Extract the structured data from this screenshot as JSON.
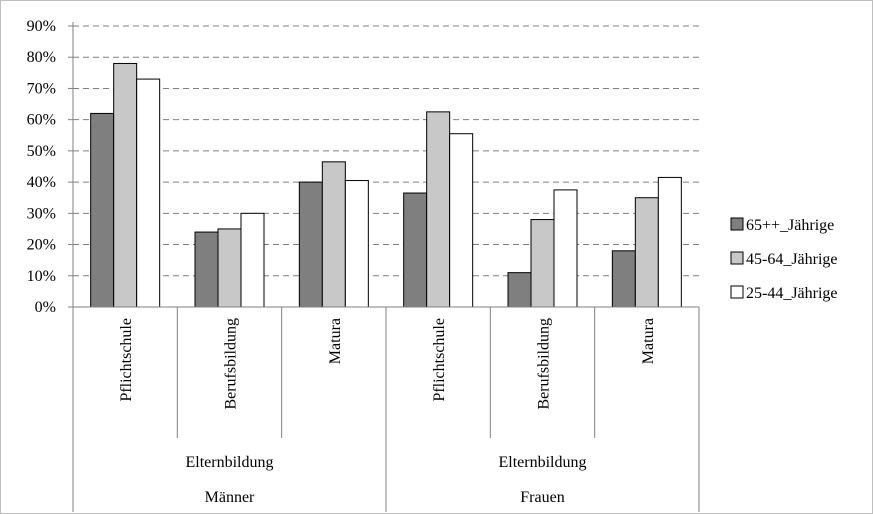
{
  "chart_data": {
    "type": "bar",
    "title": "",
    "xlabel": "",
    "ylabel": "",
    "ylim": [
      0,
      90
    ],
    "y_ticks": [
      "0%",
      "10%",
      "20%",
      "30%",
      "40%",
      "50%",
      "60%",
      "70%",
      "80%",
      "90%"
    ],
    "grid": "horizontal-dashed",
    "legend_position": "right",
    "categories": [
      "Pflichtschule",
      "Berufsbildung",
      "Matura",
      "Pflichtschule",
      "Berufsbildung",
      "Matura"
    ],
    "groups_level1": [
      {
        "label": "Elternbildung",
        "span": 3
      },
      {
        "label": "Elternbildung",
        "span": 3
      }
    ],
    "groups_level2": [
      {
        "label": "Männer",
        "span": 3
      },
      {
        "label": "Frauen",
        "span": 3
      }
    ],
    "series": [
      {
        "name": "65++_Jährige",
        "color": "#7f7f7f",
        "values": [
          62,
          24,
          40,
          36.5,
          11,
          18
        ]
      },
      {
        "name": "45-64_Jährige",
        "color": "#c8c8c8",
        "values": [
          78,
          25,
          46.5,
          62.5,
          28,
          35
        ]
      },
      {
        "name": "25-44_Jährige",
        "color": "#ffffff",
        "values": [
          73,
          30,
          40.5,
          55.5,
          37.5,
          41.5
        ]
      }
    ]
  }
}
